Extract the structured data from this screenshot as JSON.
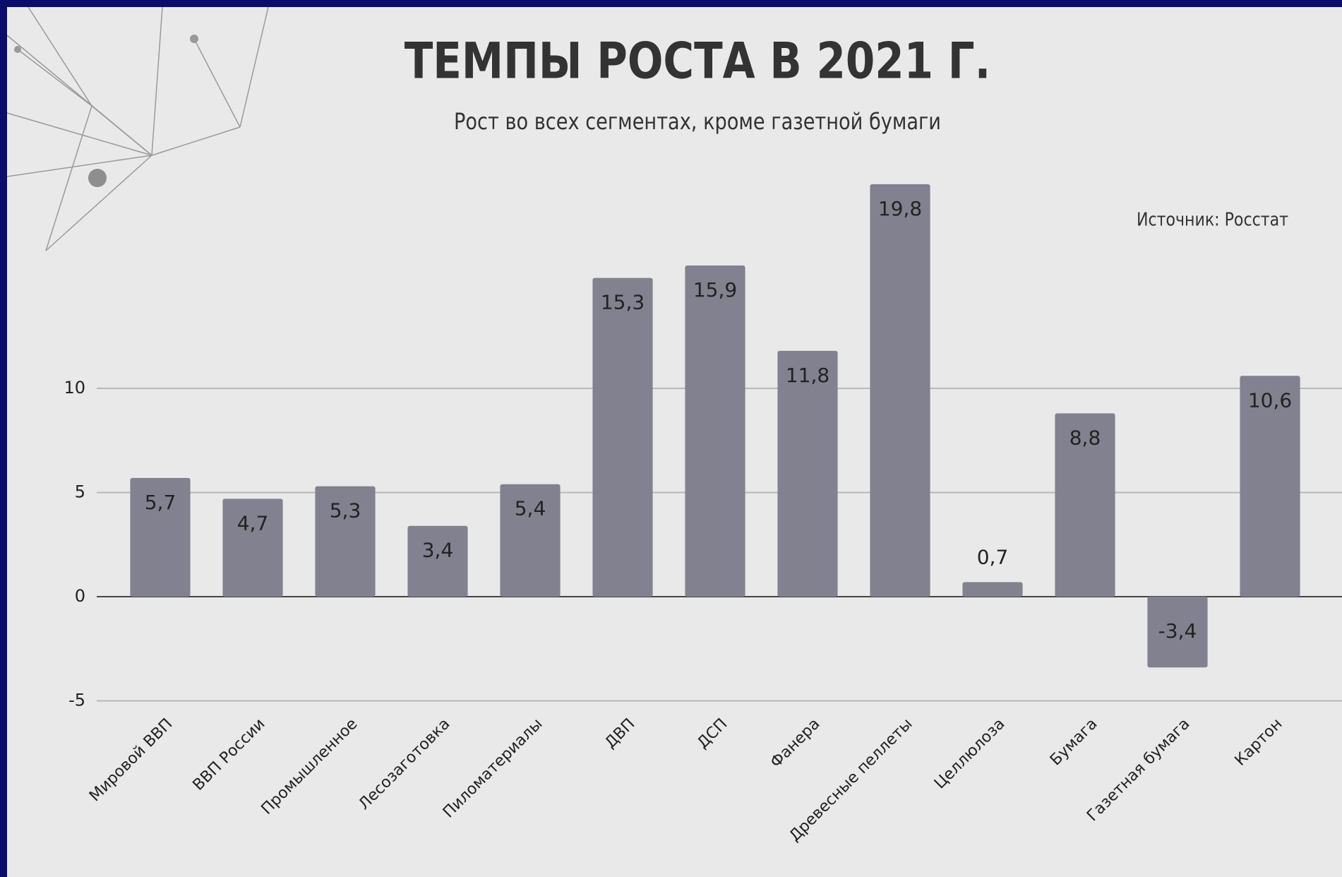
{
  "chart_data": {
    "type": "bar",
    "title": "ТЕМПЫ РОСТА В 2021 Г.",
    "subtitle": "Рост во всех сегментах, кроме газетной бумаги",
    "annotation": "Источник: Росстат",
    "categories": [
      "Мировой ВВП",
      "ВВП России",
      "Промышленное",
      "Лесозаготовка",
      "Пиломатериалы",
      "ДВП",
      "ДСП",
      "Фанера",
      "Древесные пеллеты",
      "Целлюлоза",
      "Бумага",
      "Газетная бумага",
      "Картон"
    ],
    "values": [
      5.7,
      4.7,
      5.3,
      3.4,
      5.4,
      15.3,
      15.9,
      11.8,
      19.8,
      0.7,
      8.8,
      -3.4,
      10.6
    ],
    "value_labels": [
      "5,7",
      "4,7",
      "5,3",
      "3,4",
      "5,4",
      "15,3",
      "15,9",
      "11,8",
      "19,8",
      "0,7",
      "8,8",
      "-3,4",
      "10,6"
    ],
    "color": "#81818f",
    "ylim": [
      -5,
      20
    ],
    "yticks": [
      -5,
      0,
      5,
      10
    ],
    "grid": true
  }
}
